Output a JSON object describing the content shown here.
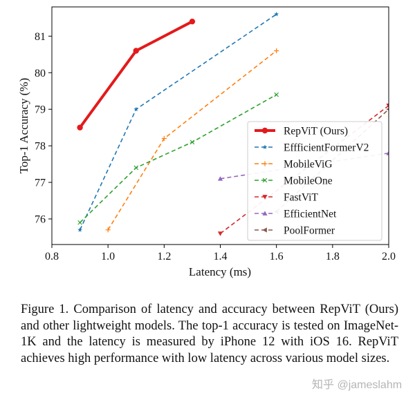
{
  "chart_data": {
    "type": "line",
    "xlabel": "Latency (ms)",
    "ylabel": "Top-1 Accuracy (%)",
    "xlim": [
      0.8,
      2.0
    ],
    "ylim": [
      75.3,
      81.8
    ],
    "xticks": [
      "0.8",
      "1.0",
      "1.2",
      "1.4",
      "1.6",
      "1.8",
      "2.0"
    ],
    "yticks": [
      "76",
      "77",
      "78",
      "79",
      "80",
      "81"
    ],
    "grid": false,
    "legend_position": "right",
    "series": [
      {
        "name": "RepViT (Ours)",
        "color": "#e31a1c",
        "style": "solid",
        "marker": "circle",
        "x": [
          0.9,
          1.1,
          1.3
        ],
        "y": [
          78.5,
          80.6,
          81.4
        ]
      },
      {
        "name": "EffficientFormerV2",
        "color": "#1f77b4",
        "style": "dashed",
        "marker": "star",
        "x": [
          0.9,
          1.1,
          1.6
        ],
        "y": [
          75.7,
          79.0,
          81.6
        ]
      },
      {
        "name": "MobileViG",
        "color": "#ff7f0e",
        "style": "dashed",
        "marker": "plus",
        "x": [
          1.0,
          1.2,
          1.6
        ],
        "y": [
          75.7,
          78.2,
          80.6
        ]
      },
      {
        "name": "MobileOne",
        "color": "#2ca02c",
        "style": "dashed",
        "marker": "x",
        "x": [
          0.9,
          1.1,
          1.3,
          1.6
        ],
        "y": [
          75.9,
          77.4,
          78.1,
          79.4
        ]
      },
      {
        "name": "FastViT",
        "color": "#d62728",
        "style": "dashed",
        "marker": "triangle-down",
        "x": [
          1.4,
          2.0
        ],
        "y": [
          75.6,
          79.1
        ]
      },
      {
        "name": "EfficientNet",
        "color": "#9467bd",
        "style": "dashed",
        "marker": "triangle-up",
        "x": [
          1.4,
          2.0
        ],
        "y": [
          77.1,
          77.8
        ]
      },
      {
        "name": "PoolFormer",
        "color": "#8c564b",
        "style": "dashed",
        "marker": "triangle-left",
        "x": [
          1.6,
          2.0
        ],
        "y": [
          76.2,
          79.0
        ]
      }
    ]
  },
  "caption": "Figure 1.  Comparison of latency and accuracy between RepViT (Ours) and other lightweight models. The top-1 accuracy is tested on ImageNet-1K and the latency is measured by iPhone 12 with iOS 16.  RepViT achieves high performance with low latency across various model sizes.",
  "watermark": "知乎 @jameslahm"
}
